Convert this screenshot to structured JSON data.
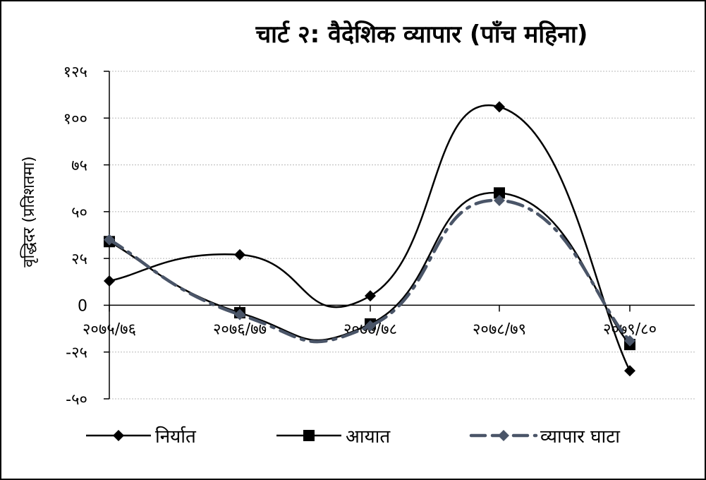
{
  "chart_data": {
    "type": "line",
    "title": "चार्ट २: वैदेशिक व्यापार (पाँच महिना)",
    "ylabel": "वृद्धिदर  (प्रतिशतमा)",
    "xlabel": "",
    "categories": [
      "२०७५/७६",
      "२०७६/७७",
      "२०७७/७८",
      "२०७८/७९",
      "२०७९/८०"
    ],
    "ylim": [
      -50,
      125
    ],
    "yticks": [
      {
        "value": 125,
        "label": "१२५"
      },
      {
        "value": 100,
        "label": "१००"
      },
      {
        "value": 75,
        "label": "७५"
      },
      {
        "value": 50,
        "label": "५०"
      },
      {
        "value": 25,
        "label": "२५"
      },
      {
        "value": 0,
        "label": "0"
      },
      {
        "value": -25,
        "label": "-२५"
      },
      {
        "value": -50,
        "label": "-५०"
      }
    ],
    "grid": true,
    "legend_position": "bottom",
    "series": [
      {
        "name": "निर्यात",
        "values": [
          13,
          27,
          5,
          106,
          -35
        ],
        "color": "#000000",
        "marker": "diamond",
        "dash": "solid"
      },
      {
        "name": "आयात",
        "values": [
          34,
          -4,
          -10,
          60,
          -21
        ],
        "color": "#000000",
        "marker": "square",
        "dash": "solid"
      },
      {
        "name": "व्यापार घाटा",
        "values": [
          35,
          -5,
          -11,
          56,
          -19
        ],
        "color": "#4a5568",
        "marker": "diamond",
        "dash": "dashed"
      }
    ]
  }
}
